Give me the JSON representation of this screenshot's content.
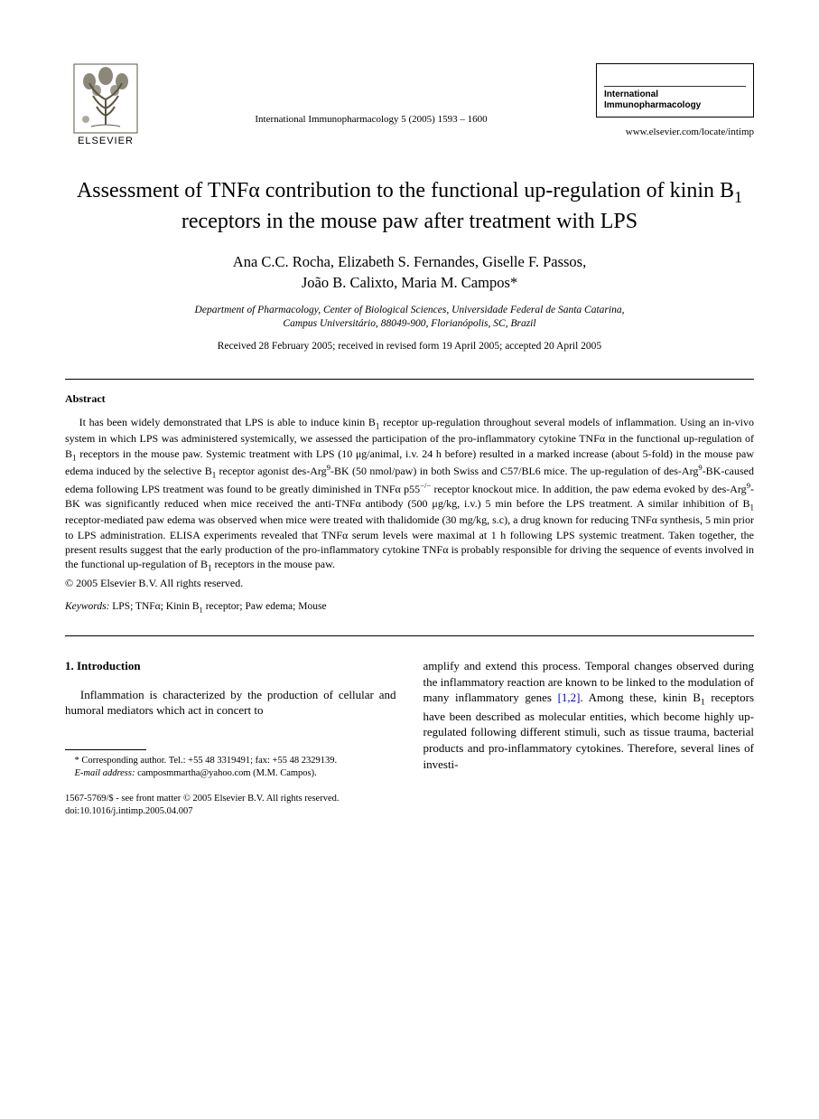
{
  "header": {
    "publisher_name": "ELSEVIER",
    "citation": "International Immunopharmacology 5 (2005) 1593 – 1600",
    "journal_line1": "International",
    "journal_line2": "Immunopharmacology",
    "journal_url": "www.elsevier.com/locate/intimp"
  },
  "title_html": "Assessment of TNFα contribution to the functional up-regulation of kinin B<sub>1</sub> receptors in the mouse paw after treatment with LPS",
  "authors_html": "Ana C.C. Rocha, Elizabeth S. Fernandes, Giselle F. Passos,<br>João B. Calixto, Maria M. Campos*",
  "affiliation_html": "Department of Pharmacology, Center of Biological Sciences, Universidade Federal de Santa Catarina,<br>Campus Universitário, 88049-900, Florianópolis, SC, Brazil",
  "dates": "Received 28 February 2005; received in revised form 19 April 2005; accepted 20 April 2005",
  "abstract": {
    "heading": "Abstract",
    "body_html": "It has been widely demonstrated that LPS is able to induce kinin B<sub>1</sub> receptor up-regulation throughout several models of inflammation. Using an in-vivo system in which LPS was administered systemically, we assessed the participation of the pro-inflammatory cytokine TNFα in the functional up-regulation of B<sub>1</sub> receptors in the mouse paw. Systemic treatment with LPS (10 μg/animal, i.v. 24 h before) resulted in a marked increase (about 5-fold) in the mouse paw edema induced by the selective B<sub>1</sub> receptor agonist des-Arg<sup>9</sup>-BK (50 nmol/paw) in both Swiss and C57/BL6 mice. The up-regulation of des-Arg<sup>9</sup>-BK-caused edema following LPS treatment was found to be greatly diminished in TNFα p55<sup>−/−</sup> receptor knockout mice. In addition, the paw edema evoked by des-Arg<sup>9</sup>-BK was significantly reduced when mice received the anti-TNFα antibody (500 μg/kg, i.v.) 5 min before the LPS treatment. A similar inhibition of B<sub>1</sub> receptor-mediated paw edema was observed when mice were treated with thalidomide (30 mg/kg, s.c), a drug known for reducing TNFα synthesis, 5 min prior to LPS administration. ELISA experiments revealed that TNFα serum levels were maximal at 1 h following LPS systemic treatment. Taken together, the present results suggest that the early production of the pro-inflammatory cytokine TNFα is probably responsible for driving the sequence of events involved in the functional up-regulation of B<sub>1</sub> receptors in the mouse paw.",
    "copyright": "© 2005 Elsevier B.V. All rights reserved."
  },
  "keywords": {
    "label": "Keywords:",
    "text_html": " LPS; TNFα; Kinin B<sub>1</sub> receptor; Paw edema; Mouse"
  },
  "section1": {
    "heading": "1. Introduction",
    "para1": "Inflammation is characterized by the production of cellular and humoral mediators which act in concert to"
  },
  "col2": {
    "para_html": "amplify and extend this process. Temporal changes observed during the inflammatory reaction are known to be linked to the modulation of many inflammatory genes <span class=\"ref-link\">[1,2]</span>. Among these, kinin B<sub>1</sub> receptors have been described as molecular entities, which become highly up-regulated following different stimuli, such as tissue trauma, bacterial products and pro-inflammatory cytokines. Therefore, several lines of investi-"
  },
  "footnotes": {
    "corresponding": "* Corresponding author. Tel.: +55 48 3319491; fax: +55 48 2329139.",
    "email_label": "E-mail address:",
    "email_value": " camposmmartha@yahoo.com (M.M. Campos)."
  },
  "bottom": {
    "front_matter": "1567-5769/$ - see front matter © 2005 Elsevier B.V. All rights reserved.",
    "doi": "doi:10.1016/j.intimp.2005.04.007"
  },
  "colors": {
    "text": "#000000",
    "background": "#ffffff",
    "link": "#0000cc",
    "logo_fill": "#5b5540"
  }
}
